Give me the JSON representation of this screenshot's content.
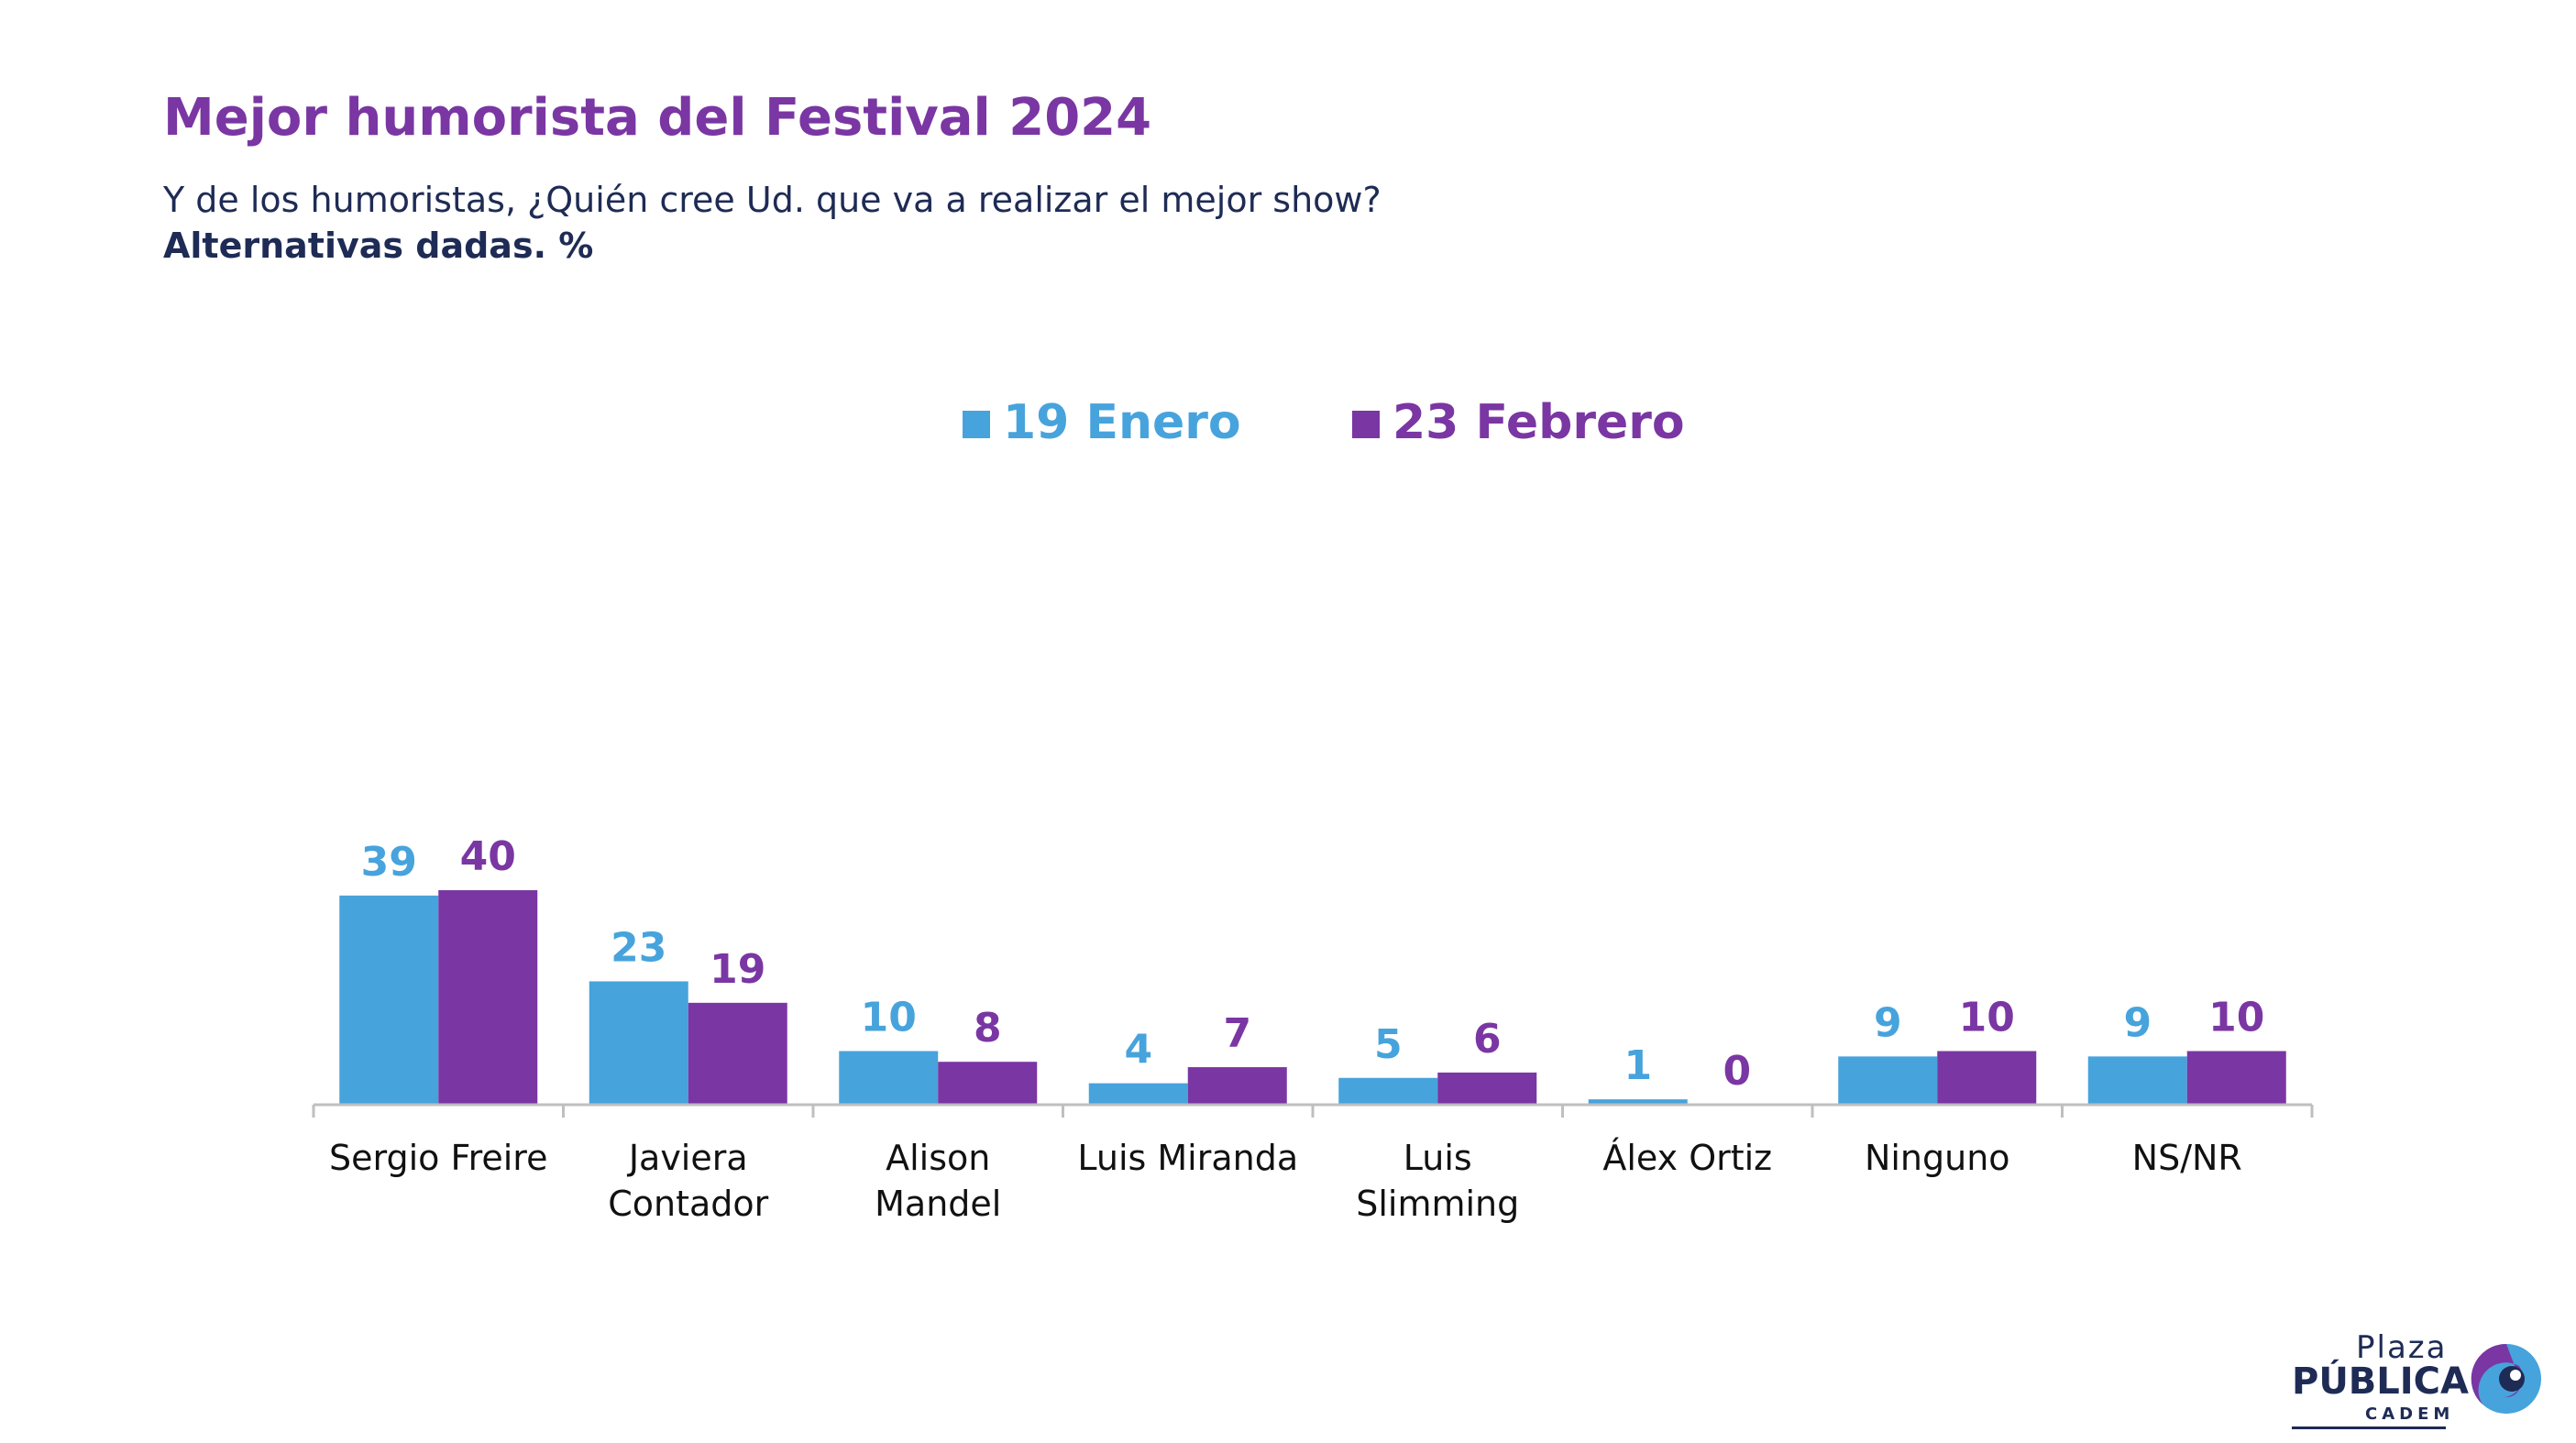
{
  "header": {
    "title": "Mejor humorista del Festival 2024",
    "subtitle": "Y de los humoristas, ¿Quién cree Ud. que va a realizar el mejor show?",
    "note": "Alternativas dadas. %"
  },
  "logo": {
    "line1": "Plaza",
    "line2": "PÚBLICA",
    "line3": "CADEM"
  },
  "colors": {
    "series1": "#47a3dc",
    "series2": "#7a36a3",
    "axis": "#bfbfbf"
  },
  "chart_data": {
    "type": "bar",
    "categories": [
      [
        "Sergio Freire"
      ],
      [
        "Javiera",
        "Contador"
      ],
      [
        "Alison",
        "Mandel"
      ],
      [
        "Luis Miranda"
      ],
      [
        "Luis",
        "Slimming"
      ],
      [
        "Álex Ortiz"
      ],
      [
        "Ninguno"
      ],
      [
        "NS/NR"
      ]
    ],
    "series": [
      {
        "name": "19 Enero",
        "values": [
          39,
          23,
          10,
          4,
          5,
          1,
          9,
          9
        ]
      },
      {
        "name": "23 Febrero",
        "values": [
          40,
          19,
          8,
          7,
          6,
          0,
          10,
          10
        ]
      }
    ],
    "title": "Mejor humorista del Festival 2024",
    "xlabel": "",
    "ylabel": "",
    "ylim": [
      0,
      40
    ],
    "legend": "top-center",
    "grid": false
  }
}
